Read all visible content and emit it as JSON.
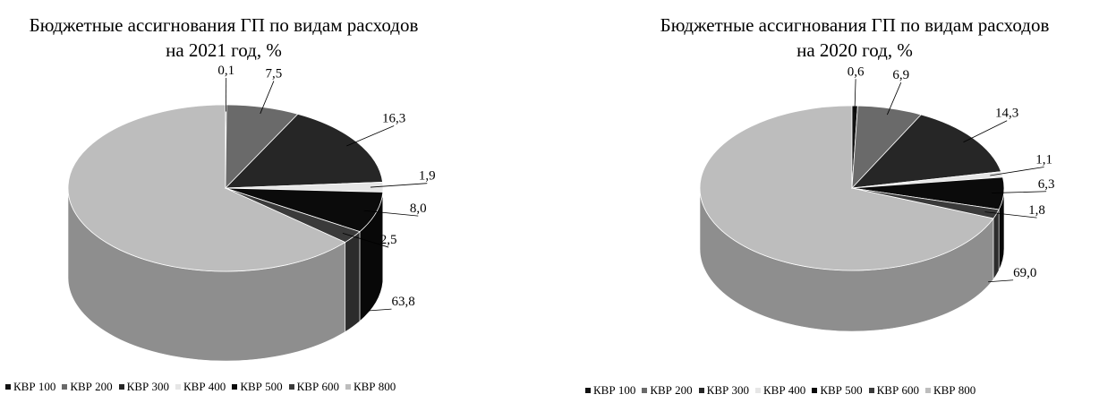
{
  "colors": {
    "КВР 100": "#111111",
    "КВР 200": "#6a6a6a",
    "КВР 300": "#262626",
    "КВР 400": "#e6e6e6",
    "КВР 500": "#0b0b0b",
    "КВР 600": "#3a3a3a",
    "КВР 800": "#bdbdbd"
  },
  "chart_data": [
    {
      "type": "pie",
      "title": "Бюджетные ассигнования ГП по видам расходов на 2021 год, %",
      "title_lines": [
        "Бюджетные ассигнования ГП по видам расходов",
        "на 2021 год, %"
      ],
      "legend_position": "bottom",
      "categories": [
        "КВР 100",
        "КВР 200",
        "КВР 300",
        "КВР 400",
        "КВР 500",
        "КВР 600",
        "КВР 800"
      ],
      "values": [
        0.1,
        7.5,
        16.3,
        1.9,
        8.0,
        2.5,
        63.8
      ],
      "value_labels": [
        "0,1",
        "7,5",
        "16,3",
        "1,9",
        "8,0",
        "2,5",
        "63,8"
      ]
    },
    {
      "type": "pie",
      "title": "Бюджетные ассигнования ГП по видам расходов на 2020 год, %",
      "title_lines": [
        "Бюджетные ассигнования ГП по видам расходов",
        "на 2020 год, %"
      ],
      "legend_position": "bottom",
      "categories": [
        "КВР 100",
        "КВР 200",
        "КВР 300",
        "КВР 400",
        "КВР 500",
        "КВР 600",
        "КВР 800"
      ],
      "values": [
        0.6,
        6.9,
        14.3,
        1.1,
        6.3,
        1.8,
        69.0
      ],
      "value_labels": [
        "0,6",
        "6,9",
        "14,3",
        "1,1",
        "6,3",
        "1,8",
        "69,0"
      ]
    }
  ]
}
